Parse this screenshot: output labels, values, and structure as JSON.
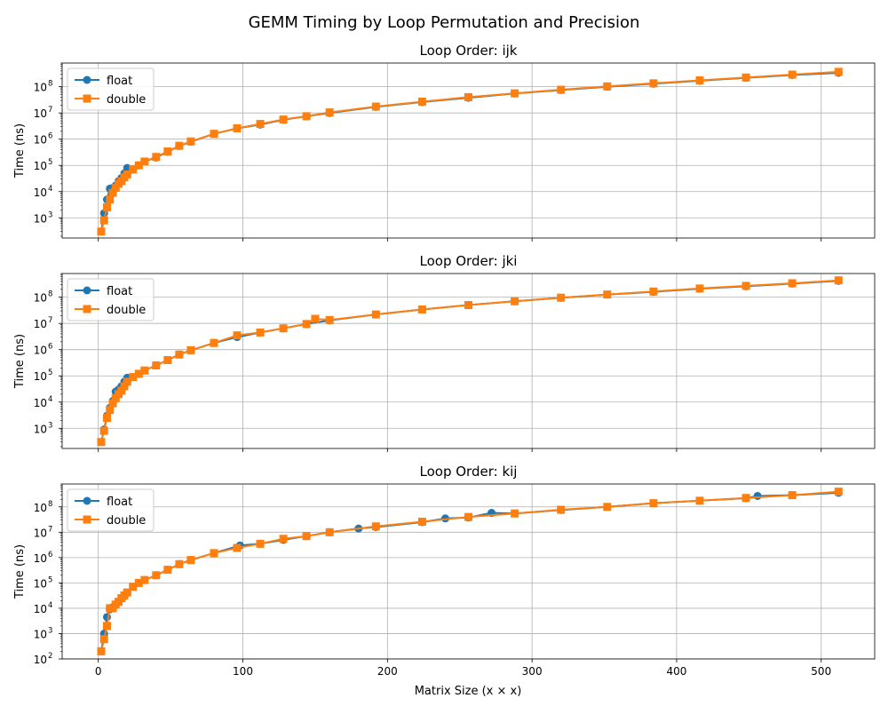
{
  "figure": {
    "suptitle": "GEMM Timing by Loop Permutation and Precision",
    "xlabel": "Matrix Size (x × x)",
    "ylabel": "Time (ns)"
  },
  "colors": {
    "float": "#1f77b4",
    "double": "#ff7f0e",
    "grid": "#b0b0b0"
  },
  "chart_data": [
    {
      "type": "line",
      "title": "Loop Order: ijk",
      "xlabel": "",
      "ylabel": "Time (ns)",
      "xscale": "linear",
      "yscale": "log",
      "xlim": [
        -25,
        537
      ],
      "ylim": [
        170,
        800000000.0
      ],
      "xticks": [
        0,
        100,
        200,
        300,
        400,
        500
      ],
      "xtick_labels": [
        "0",
        "100",
        "200",
        "300",
        "400",
        "500"
      ],
      "yticks": [
        1000,
        10000,
        100000,
        1000000,
        10000000,
        100000000
      ],
      "ytick_labels": [
        "10",
        "10",
        "10",
        "10",
        "10",
        "10"
      ],
      "ytick_exponents": [
        "3",
        "4",
        "5",
        "6",
        "7",
        "8"
      ],
      "grid": true,
      "legend": "upper-left",
      "series": [
        {
          "name": "float",
          "marker": "circle",
          "x": [
            2,
            4,
            6,
            8,
            10,
            12,
            14,
            16,
            18,
            20,
            24,
            28,
            32,
            40,
            48,
            56,
            64,
            80,
            96,
            112,
            128,
            144,
            160,
            192,
            224,
            256,
            288,
            320,
            352,
            384,
            416,
            448,
            480,
            512
          ],
          "y": [
            300,
            1500,
            5000,
            13000,
            14000,
            17000,
            25000,
            33000,
            50000,
            80000,
            70000,
            100000,
            140000,
            200000,
            330000,
            550000,
            800000,
            1600000,
            2600000,
            3600000,
            5500000,
            7500000,
            10000000,
            17000000,
            26000000,
            38000000,
            55000000,
            75000000,
            100000000,
            130000000,
            170000000,
            220000000,
            280000000,
            340000000
          ]
        },
        {
          "name": "double",
          "marker": "square",
          "x": [
            2,
            4,
            6,
            8,
            10,
            12,
            14,
            16,
            18,
            20,
            24,
            28,
            32,
            40,
            48,
            56,
            64,
            80,
            96,
            112,
            128,
            144,
            160,
            192,
            224,
            256,
            288,
            320,
            352,
            384,
            416,
            448,
            480,
            512
          ],
          "y": [
            300,
            800,
            2500,
            5000,
            9000,
            14000,
            20000,
            25000,
            35000,
            45000,
            70000,
            100000,
            140000,
            210000,
            340000,
            560000,
            820000,
            1600000,
            2600000,
            3800000,
            5600000,
            7500000,
            10500000,
            17500000,
            27000000,
            40000000,
            56000000,
            77000000,
            103000000,
            135000000,
            175000000,
            225000000,
            290000000,
            370000000
          ]
        }
      ]
    },
    {
      "type": "line",
      "title": "Loop Order: jki",
      "xlabel": "",
      "ylabel": "Time (ns)",
      "xscale": "linear",
      "yscale": "log",
      "xlim": [
        -25,
        537
      ],
      "ylim": [
        170,
        800000000.0
      ],
      "xticks": [
        0,
        100,
        200,
        300,
        400,
        500
      ],
      "xtick_labels": [
        "0",
        "100",
        "200",
        "300",
        "400",
        "500"
      ],
      "yticks": [
        1000,
        10000,
        100000,
        1000000,
        10000000,
        100000000
      ],
      "ytick_labels": [
        "10",
        "10",
        "10",
        "10",
        "10",
        "10"
      ],
      "ytick_exponents": [
        "3",
        "4",
        "5",
        "6",
        "7",
        "8"
      ],
      "grid": true,
      "legend": "upper-left",
      "series": [
        {
          "name": "float",
          "marker": "circle",
          "x": [
            2,
            4,
            6,
            8,
            10,
            12,
            14,
            16,
            18,
            20,
            24,
            28,
            32,
            40,
            48,
            56,
            64,
            80,
            96,
            112,
            128,
            144,
            160,
            192,
            224,
            256,
            288,
            320,
            352,
            384,
            416,
            448,
            480,
            512
          ],
          "y": [
            300,
            900,
            3000,
            6000,
            11000,
            25000,
            30000,
            40000,
            60000,
            85000,
            90000,
            120000,
            160000,
            250000,
            400000,
            650000,
            950000,
            1800000,
            3000000,
            4500000,
            6500000,
            9500000,
            13000000,
            22000000,
            34000000,
            50000000,
            70000000,
            95000000,
            125000000,
            160000000,
            210000000,
            260000000,
            330000000,
            420000000
          ]
        },
        {
          "name": "double",
          "marker": "square",
          "x": [
            2,
            4,
            6,
            8,
            10,
            12,
            14,
            16,
            18,
            20,
            24,
            28,
            32,
            40,
            48,
            56,
            64,
            80,
            96,
            112,
            128,
            144,
            150,
            160,
            192,
            224,
            256,
            288,
            320,
            352,
            384,
            416,
            448,
            480,
            512
          ],
          "y": [
            300,
            800,
            2500,
            5000,
            9000,
            14000,
            20000,
            27000,
            40000,
            60000,
            90000,
            120000,
            160000,
            250000,
            400000,
            650000,
            950000,
            1800000,
            3500000,
            4500000,
            6500000,
            9500000,
            15000000,
            13500000,
            22000000,
            34000000,
            50000000,
            70000000,
            96000000,
            127000000,
            165000000,
            215000000,
            270000000,
            340000000,
            440000000
          ]
        }
      ]
    },
    {
      "type": "line",
      "title": "Loop Order: kij",
      "xlabel": "Matrix Size (x × x)",
      "ylabel": "Time (ns)",
      "xscale": "linear",
      "yscale": "log",
      "xlim": [
        -25,
        537
      ],
      "ylim": [
        100,
        800000000.0
      ],
      "xticks": [
        0,
        100,
        200,
        300,
        400,
        500
      ],
      "xtick_labels": [
        "0",
        "100",
        "200",
        "300",
        "400",
        "500"
      ],
      "yticks": [
        100,
        1000,
        10000,
        100000,
        1000000,
        10000000,
        100000000
      ],
      "ytick_labels": [
        "10",
        "10",
        "10",
        "10",
        "10",
        "10",
        "10"
      ],
      "ytick_exponents": [
        "2",
        "3",
        "4",
        "5",
        "6",
        "7",
        "8"
      ],
      "grid": true,
      "legend": "upper-left",
      "series": [
        {
          "name": "float",
          "marker": "circle",
          "x": [
            2,
            4,
            6,
            8,
            10,
            12,
            14,
            16,
            18,
            20,
            24,
            28,
            32,
            40,
            48,
            56,
            64,
            80,
            98,
            112,
            128,
            144,
            160,
            180,
            192,
            224,
            240,
            256,
            272,
            288,
            320,
            352,
            384,
            416,
            448,
            456,
            480,
            512
          ],
          "y": [
            200,
            1000,
            4500,
            9000,
            11000,
            14000,
            18000,
            24000,
            30000,
            40000,
            70000,
            100000,
            130000,
            200000,
            330000,
            550000,
            800000,
            1500000,
            3000000,
            3500000,
            5000000,
            7000000,
            10000000,
            14000000,
            16000000,
            25000000,
            35000000,
            38000000,
            58000000,
            55000000,
            75000000,
            100000000,
            140000000,
            175000000,
            220000000,
            270000000,
            290000000,
            360000000
          ]
        },
        {
          "name": "double",
          "marker": "square",
          "x": [
            2,
            4,
            6,
            8,
            10,
            12,
            14,
            16,
            18,
            20,
            24,
            28,
            32,
            40,
            48,
            56,
            64,
            80,
            96,
            112,
            128,
            144,
            160,
            192,
            224,
            256,
            288,
            320,
            352,
            384,
            416,
            448,
            480,
            512
          ],
          "y": [
            200,
            600,
            2000,
            10000,
            10000,
            14000,
            18000,
            25000,
            32000,
            42000,
            70000,
            100000,
            130000,
            200000,
            330000,
            550000,
            800000,
            1500000,
            2400000,
            3500000,
            5500000,
            7000000,
            10000000,
            17000000,
            26000000,
            40000000,
            55000000,
            77000000,
            100000000,
            140000000,
            175000000,
            225000000,
            290000000,
            400000000
          ]
        }
      ]
    }
  ]
}
